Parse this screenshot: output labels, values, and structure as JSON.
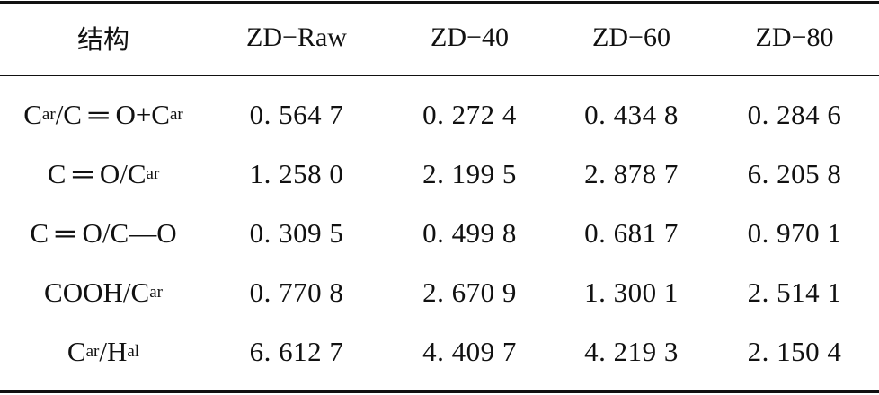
{
  "table": {
    "headers": [
      "结构",
      "ZD−Raw",
      "ZD−40",
      "ZD−60",
      "ZD−80"
    ],
    "rows": [
      {
        "structure": {
          "parts": [
            {
              "t": "C"
            },
            {
              "s": "ar"
            },
            {
              "t": "/C ═ O+C"
            },
            {
              "s": "ar"
            }
          ]
        },
        "values": [
          "0. 564 7",
          "0. 272 4",
          "0. 434 8",
          "0. 284 6"
        ]
      },
      {
        "structure": {
          "parts": [
            {
              "t": "C ═ O/C"
            },
            {
              "s": "ar"
            }
          ]
        },
        "values": [
          "1. 258 0",
          "2. 199 5",
          "2. 878 7",
          "6. 205 8"
        ]
      },
      {
        "structure": {
          "parts": [
            {
              "t": "C ═ O/C—O"
            }
          ]
        },
        "values": [
          "0. 309 5",
          "0. 499 8",
          "0. 681 7",
          "0. 970 1"
        ]
      },
      {
        "structure": {
          "parts": [
            {
              "t": "COOH/C"
            },
            {
              "s": "ar"
            }
          ]
        },
        "values": [
          "0. 770 8",
          "2. 670 9",
          "1. 300 1",
          "2. 514 1"
        ]
      },
      {
        "structure": {
          "parts": [
            {
              "t": "C"
            },
            {
              "s": "ar"
            },
            {
              "t": "/H"
            },
            {
              "s": "al"
            }
          ]
        },
        "values": [
          "6. 612 7",
          "4. 409 7",
          "4. 219 3",
          "2. 150 4"
        ]
      }
    ]
  }
}
